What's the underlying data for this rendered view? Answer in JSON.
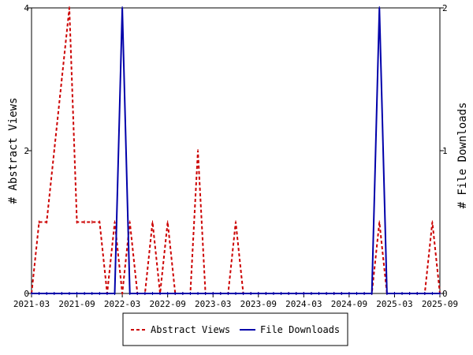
{
  "chart_data": {
    "type": "line",
    "x_tick_labels": [
      "2021-03",
      "2021-09",
      "2022-03",
      "2022-09",
      "2023-03",
      "2023-09",
      "2024-03",
      "2024-09",
      "2025-03",
      "2025-09"
    ],
    "y_left": {
      "label": "# Abstract Views",
      "ticks": [
        "0",
        "2",
        "4"
      ],
      "ylim": [
        0,
        4
      ]
    },
    "y_right": {
      "label": "# File Downloads",
      "ticks": [
        "0",
        "1",
        "2"
      ],
      "ylim": [
        0,
        2
      ]
    },
    "xlim": [
      "2021-03",
      "2025-09"
    ],
    "grid": false,
    "legend_position": "bottom",
    "series": [
      {
        "name": "Abstract Views",
        "axis": "left",
        "color": "#cc0000",
        "style": "dashed",
        "x": [
          "2021-03",
          "2021-04",
          "2021-05",
          "2021-06",
          "2021-07",
          "2021-08",
          "2021-09",
          "2021-10",
          "2021-11",
          "2021-12",
          "2022-01",
          "2022-02",
          "2022-03",
          "2022-04",
          "2022-05",
          "2022-06",
          "2022-07",
          "2022-08",
          "2022-09",
          "2022-10",
          "2022-11",
          "2022-12",
          "2023-01",
          "2023-02",
          "2023-03",
          "2023-04",
          "2023-05",
          "2023-06",
          "2023-07",
          "2023-08",
          "2023-09",
          "2023-10",
          "2023-11",
          "2023-12",
          "2024-01",
          "2024-02",
          "2024-03",
          "2024-04",
          "2024-05",
          "2024-06",
          "2024-07",
          "2024-08",
          "2024-09",
          "2024-10",
          "2024-11",
          "2024-12",
          "2025-01",
          "2025-02",
          "2025-03",
          "2025-04",
          "2025-05",
          "2025-06",
          "2025-07",
          "2025-08",
          "2025-09"
        ],
        "values": [
          0,
          1,
          1,
          2,
          3,
          4,
          1,
          1,
          1,
          1,
          0,
          1,
          0,
          1,
          0,
          0,
          1,
          0,
          1,
          0,
          0,
          0,
          2,
          0,
          0,
          0,
          0,
          1,
          0,
          0,
          0,
          0,
          0,
          0,
          0,
          0,
          0,
          0,
          0,
          0,
          0,
          0,
          0,
          0,
          0,
          0,
          1,
          0,
          0,
          0,
          0,
          0,
          0,
          1,
          0
        ]
      },
      {
        "name": "File Downloads",
        "axis": "right",
        "color": "#0000aa",
        "style": "solid",
        "x": [
          "2021-03",
          "2021-04",
          "2021-05",
          "2021-06",
          "2021-07",
          "2021-08",
          "2021-09",
          "2021-10",
          "2021-11",
          "2021-12",
          "2022-01",
          "2022-02",
          "2022-03",
          "2022-04",
          "2022-05",
          "2022-06",
          "2022-07",
          "2022-08",
          "2022-09",
          "2022-10",
          "2022-11",
          "2022-12",
          "2023-01",
          "2023-02",
          "2023-03",
          "2023-04",
          "2023-05",
          "2023-06",
          "2023-07",
          "2023-08",
          "2023-09",
          "2023-10",
          "2023-11",
          "2023-12",
          "2024-01",
          "2024-02",
          "2024-03",
          "2024-04",
          "2024-05",
          "2024-06",
          "2024-07",
          "2024-08",
          "2024-09",
          "2024-10",
          "2024-11",
          "2024-12",
          "2025-01",
          "2025-02",
          "2025-03",
          "2025-04",
          "2025-05",
          "2025-06",
          "2025-07",
          "2025-08",
          "2025-09"
        ],
        "values": [
          0,
          0,
          0,
          0,
          0,
          0,
          0,
          0,
          0,
          0,
          0,
          0,
          2,
          0,
          0,
          0,
          0,
          0,
          0,
          0,
          0,
          0,
          0,
          0,
          0,
          0,
          0,
          0,
          0,
          0,
          0,
          0,
          0,
          0,
          0,
          0,
          0,
          0,
          0,
          0,
          0,
          0,
          0,
          0,
          0,
          0,
          2,
          0,
          0,
          0,
          0,
          0,
          0,
          0,
          0
        ]
      }
    ]
  }
}
